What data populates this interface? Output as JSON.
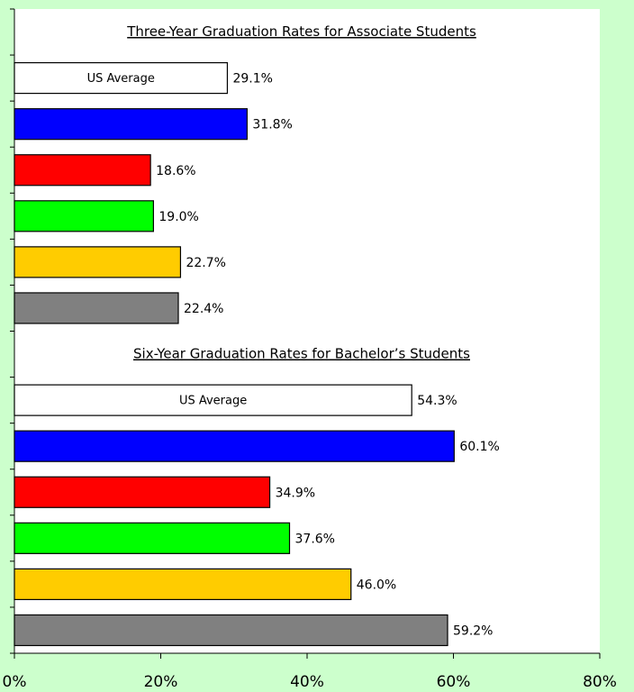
{
  "chart_data": {
    "type": "bar",
    "orientation": "horizontal",
    "xlim": [
      0,
      80
    ],
    "xticks": [
      {
        "value": 0,
        "label": "0%"
      },
      {
        "value": 20,
        "label": "20%"
      },
      {
        "value": 40,
        "label": "40%"
      },
      {
        "value": 60,
        "label": "60%"
      },
      {
        "value": 80,
        "label": "80%"
      }
    ],
    "groups": [
      {
        "title": "Three-Year Graduation Rates for Associate Students",
        "categories": [
          "US Average",
          null,
          null,
          null,
          null,
          null
        ],
        "values": [
          29.1,
          31.8,
          18.6,
          19.0,
          22.7,
          22.4
        ],
        "value_labels": [
          "29.1%",
          "31.8%",
          "18.6%",
          "19.0%",
          "22.7%",
          "22.4%"
        ],
        "colors": [
          "#ffffff",
          "#0000ff",
          "#ff0000",
          "#00ff00",
          "#ffcc00",
          "#808080"
        ]
      },
      {
        "title": "Six-Year Graduation Rates for Bachelor’s Students",
        "categories": [
          "US Average",
          null,
          null,
          null,
          null,
          null
        ],
        "values": [
          54.3,
          60.1,
          34.9,
          37.6,
          46.0,
          59.2
        ],
        "value_labels": [
          "54.3%",
          "60.1%",
          "34.9%",
          "37.6%",
          "46.0%",
          "59.2%"
        ],
        "colors": [
          "#ffffff",
          "#0000ff",
          "#ff0000",
          "#00ff00",
          "#ffcc00",
          "#808080"
        ]
      }
    ]
  }
}
